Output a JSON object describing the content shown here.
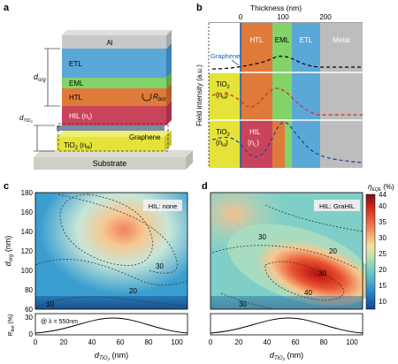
{
  "panels": {
    "a": {
      "letter": "a",
      "layers": {
        "al": "Al",
        "etl": "ETL",
        "eml": "EML",
        "htl": "HTL",
        "hil": "HIL (n",
        "hil_sub": "r",
        "hil_end": ")",
        "tio2": "TiO",
        "tio2_sub": "2",
        "tio2_tail": " (n",
        "tio2_sub2": "H",
        "tio2_end": ")",
        "substrate": "Substrate",
        "graphene": "Graphene"
      },
      "labels": {
        "d_org": "d",
        "d_org_sub": "org",
        "d_tio2": "d",
        "d_tio2_sub": "TiO",
        "d_tio2_sub2": "2",
        "r_bot": "R",
        "r_bot_sub": "bot"
      }
    },
    "b": {
      "letter": "b",
      "title": "Thickness (nm)",
      "ticks": [
        "0",
        "100",
        "200"
      ],
      "ylabel": "Field intensity (a.u.)",
      "regions": {
        "htl": "HTL",
        "eml": "EML",
        "etl": "ETL",
        "metal": "Metal",
        "graphene": "Graphene"
      },
      "row2": {
        "tio2": "TiO",
        "sub2": "2",
        "n": "(n",
        "nsub": "H",
        "end": ")"
      },
      "row3": {
        "tio2": "TiO",
        "sub2": "2",
        "n": "(n",
        "nsub": "H",
        "end": ")",
        "hil": "HIL",
        "hn": "(n",
        "hnsub": "L",
        "hend": ")"
      }
    },
    "c": {
      "letter": "c",
      "legend": "HIL: none",
      "ylabel": "d",
      "ylabel_sub": "org",
      "ylabel_unit": " (nm)",
      "yticks": [
        "180",
        "160",
        "140",
        "120",
        "100",
        "80",
        "60"
      ],
      "xticks": [
        "0",
        "20",
        "40",
        "60",
        "80",
        "100"
      ],
      "contours": [
        "30",
        "20",
        "10"
      ],
      "rbot_label": "R",
      "rbot_sub": "bot",
      "rbot_unit": " (%)",
      "rbot_ticks": [
        "30",
        "0"
      ],
      "lambda_label": "@ λ = 550nm",
      "xlabel": "d",
      "xlabel_sub": "TiO",
      "xlabel_sub2": "2",
      "xlabel_unit": " (nm)"
    },
    "d": {
      "letter": "d",
      "legend": "HIL: GraHIL",
      "contours": [
        "20",
        "30",
        "40",
        "30",
        "30"
      ],
      "xticks": [
        "0",
        "20",
        "40",
        "60",
        "80",
        "100"
      ],
      "xlabel": "d",
      "xlabel_sub": "TiO",
      "xlabel_sub2": "2",
      "xlabel_unit": " (nm)"
    },
    "colorbar": {
      "title": "η",
      "title_sub": "EQE",
      "title_unit": " (%)",
      "ticks": [
        "44",
        "40",
        "35",
        "30",
        "25",
        "20",
        "15",
        "10"
      ]
    }
  },
  "colors": {
    "htl": "#e07a3a",
    "eml": "#82d36a",
    "etl": "#5aa8d8",
    "metal": "#bdbdbd",
    "hil": "#c9445a",
    "tio2": "#e5e23a",
    "graphene_line": "#1f5fb0"
  }
}
